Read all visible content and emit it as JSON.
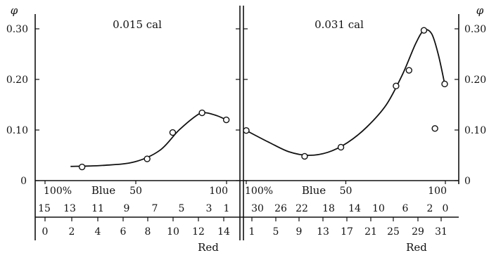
{
  "chart_data": [
    {
      "type": "scatter",
      "panel": "left",
      "title": "0.015 cal",
      "ylabel": "φ",
      "ylim": [
        0,
        0.32
      ],
      "yticks": [
        "0",
        "0.10",
        "0.20",
        "0.30"
      ],
      "blue_axis": {
        "label": "Blue",
        "pct_range": [
          100,
          0
        ],
        "pct_ticks": [
          "100%",
          "50",
          "100"
        ],
        "ticks": [
          "15",
          "13",
          "11",
          "9",
          "7",
          "5",
          "3",
          "1"
        ]
      },
      "red_axis": {
        "label": "Red",
        "ticks": [
          "0",
          "2",
          "4",
          "6",
          "8",
          "10",
          "12",
          "14"
        ]
      },
      "points": [
        {
          "red": 2.9,
          "y": 0.027
        },
        {
          "red": 8.0,
          "y": 0.043
        },
        {
          "red": 10.0,
          "y": 0.095
        },
        {
          "red": 12.3,
          "y": 0.134
        },
        {
          "red": 14.2,
          "y": 0.12
        }
      ],
      "curve": [
        {
          "red": 2.0,
          "y": 0.028
        },
        {
          "red": 4.5,
          "y": 0.03
        },
        {
          "red": 7.0,
          "y": 0.037
        },
        {
          "red": 9.0,
          "y": 0.06
        },
        {
          "red": 10.5,
          "y": 0.1
        },
        {
          "red": 12.0,
          "y": 0.131
        },
        {
          "red": 12.6,
          "y": 0.134
        },
        {
          "red": 13.5,
          "y": 0.128
        },
        {
          "red": 14.2,
          "y": 0.12
        }
      ]
    },
    {
      "type": "scatter",
      "panel": "right",
      "title": "0.031 cal",
      "ylabel": "φ",
      "ylim": [
        0,
        0.32
      ],
      "yticks": [
        "0",
        "0.10",
        "0.20",
        "0.30"
      ],
      "blue_axis": {
        "label": "Blue",
        "pct_range": [
          100,
          0
        ],
        "pct_ticks": [
          "100%",
          "50",
          "100"
        ],
        "ticks": [
          "30",
          "26",
          "22",
          "18",
          "14",
          "10",
          "6",
          "2",
          "0"
        ]
      },
      "red_axis": {
        "label": "Red",
        "ticks": [
          "1",
          "5",
          "9",
          "13",
          "17",
          "21",
          "25",
          "29",
          "31"
        ]
      },
      "points": [
        {
          "red": 0.4,
          "y": 0.099
        },
        {
          "red": 9.4,
          "y": 0.048
        },
        {
          "red": 15.0,
          "y": 0.066
        },
        {
          "red": 23.5,
          "y": 0.187
        },
        {
          "red": 25.5,
          "y": 0.218
        },
        {
          "red": 27.8,
          "y": 0.297
        },
        {
          "red": 29.5,
          "y": 0.103
        },
        {
          "red": 31.0,
          "y": 0.191
        }
      ],
      "curve": [
        {
          "red": 0.4,
          "y": 0.099
        },
        {
          "red": 4.0,
          "y": 0.075
        },
        {
          "red": 7.0,
          "y": 0.057
        },
        {
          "red": 10.0,
          "y": 0.05
        },
        {
          "red": 13.0,
          "y": 0.056
        },
        {
          "red": 16.0,
          "y": 0.075
        },
        {
          "red": 19.0,
          "y": 0.106
        },
        {
          "red": 22.0,
          "y": 0.15
        },
        {
          "red": 24.5,
          "y": 0.21
        },
        {
          "red": 26.5,
          "y": 0.27
        },
        {
          "red": 27.8,
          "y": 0.297
        },
        {
          "red": 29.0,
          "y": 0.29
        },
        {
          "red": 30.0,
          "y": 0.25
        },
        {
          "red": 31.0,
          "y": 0.191
        }
      ]
    }
  ]
}
